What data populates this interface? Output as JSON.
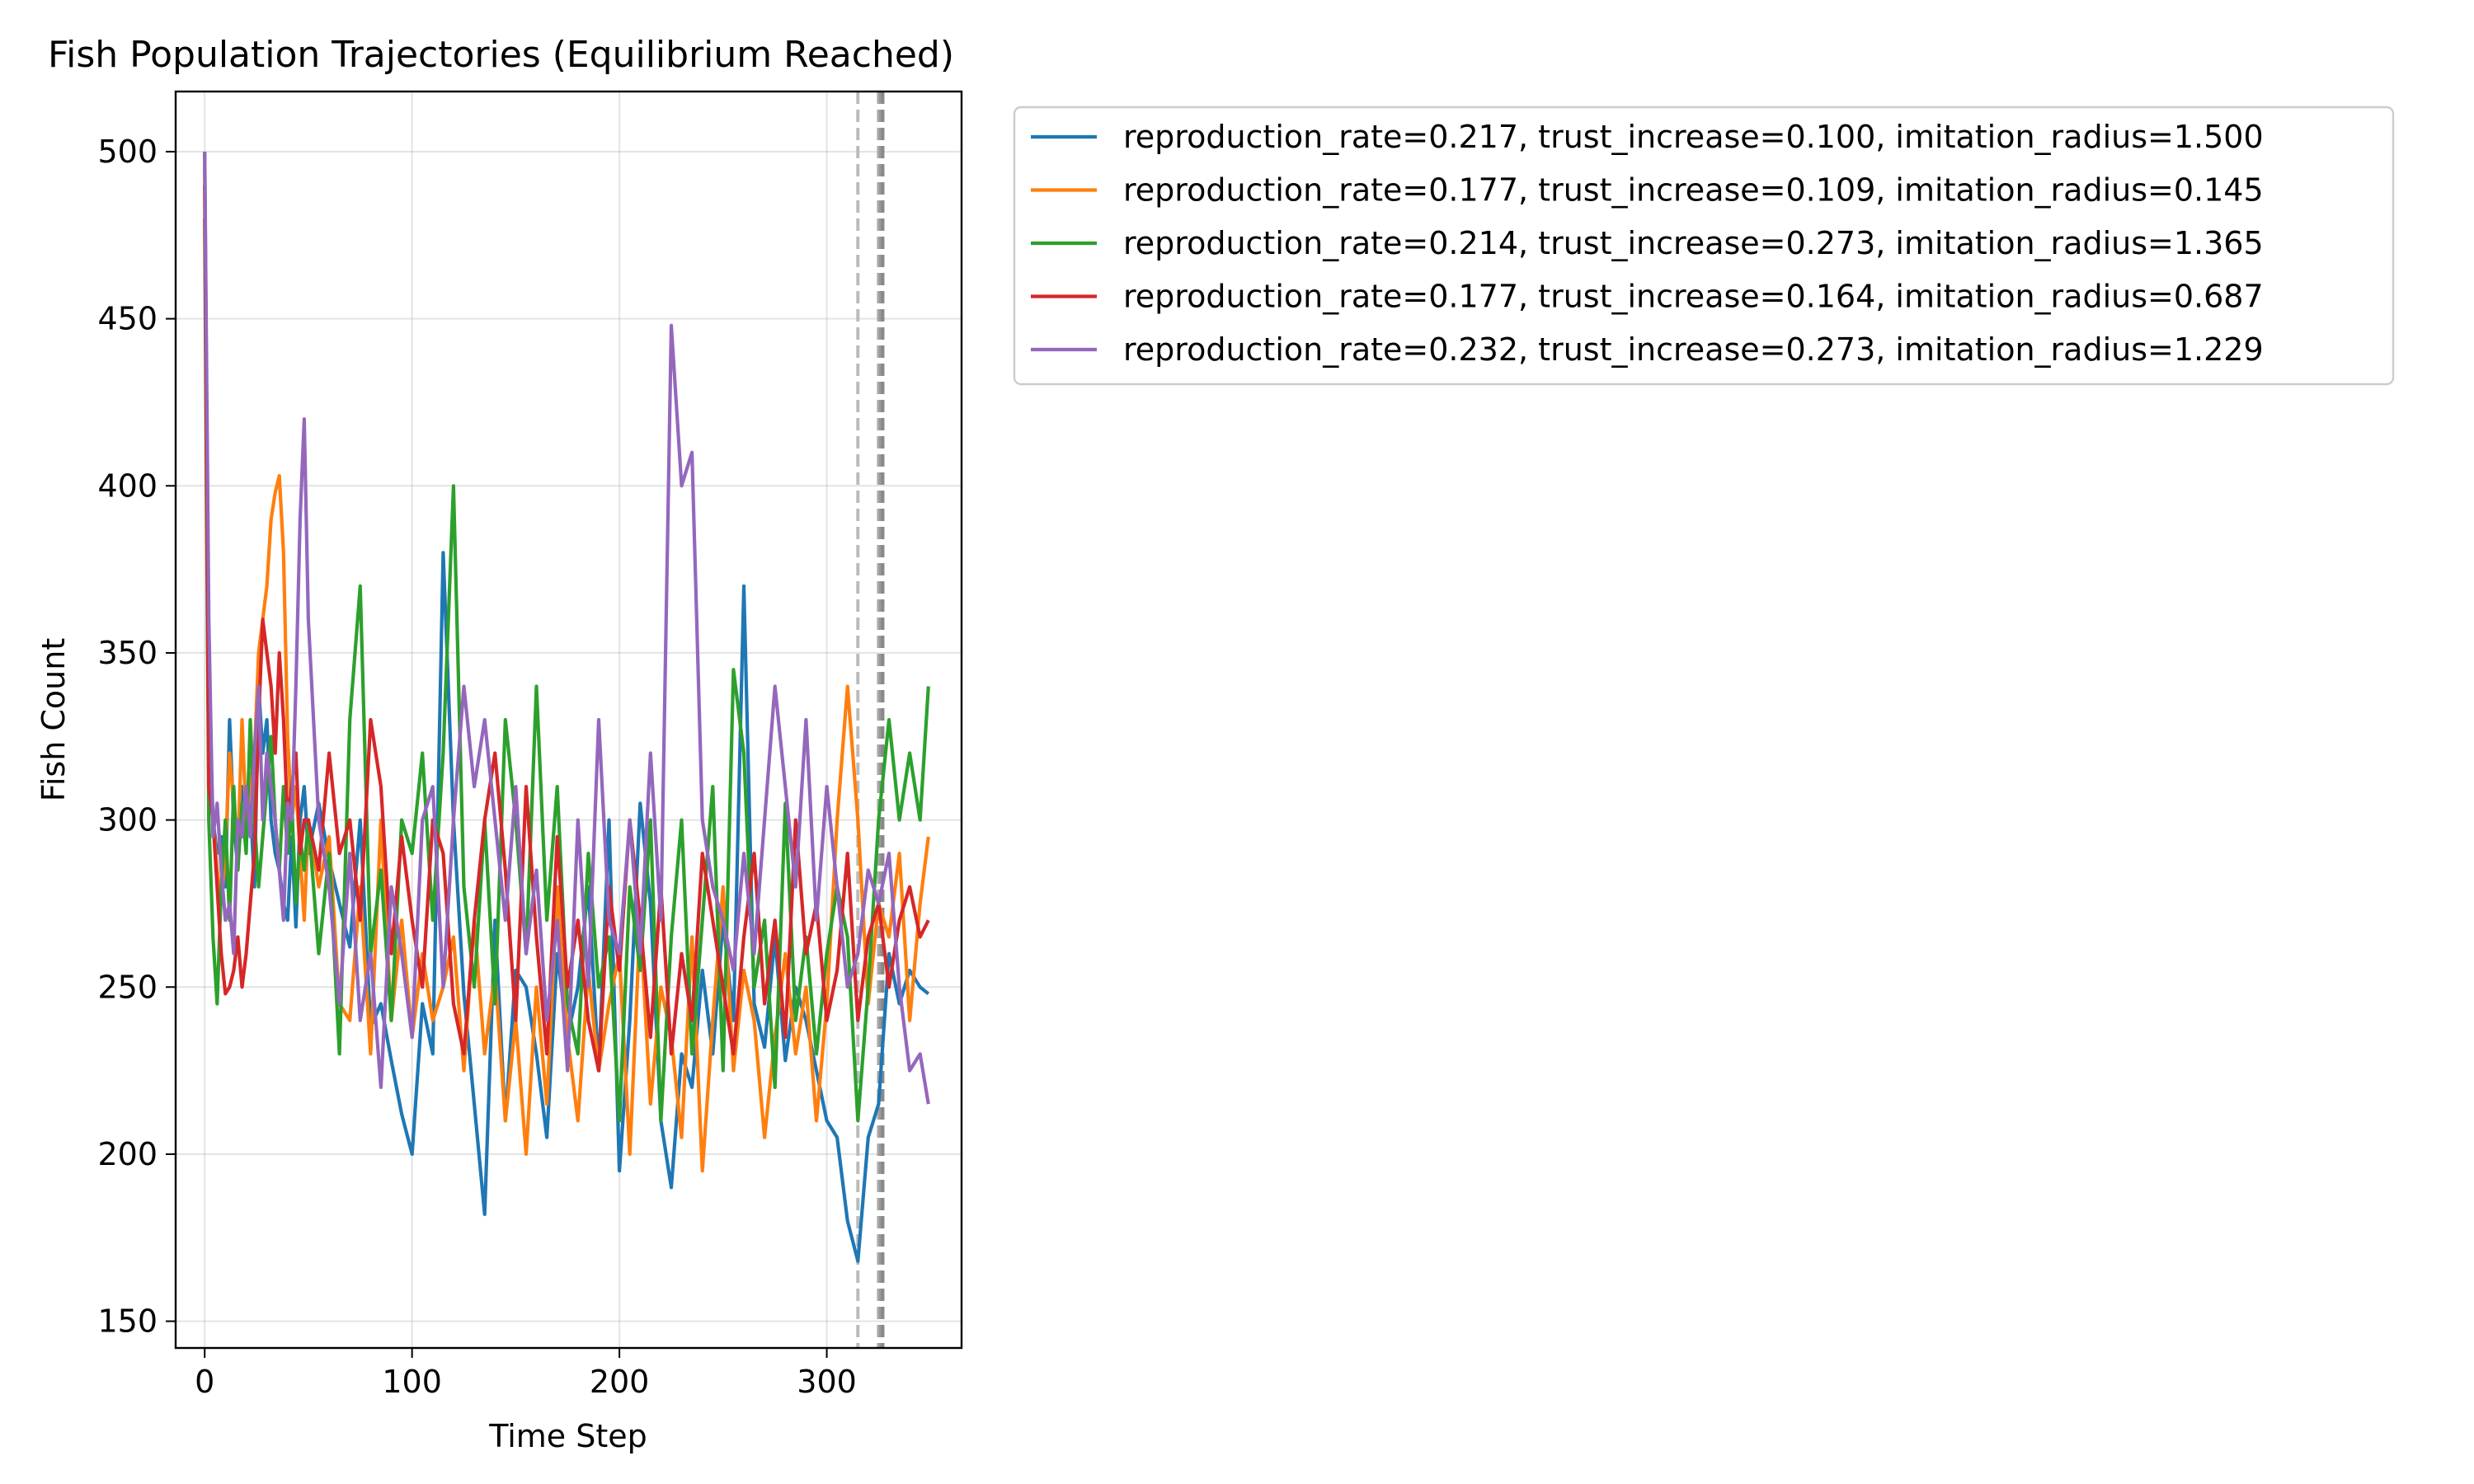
{
  "chart_data": {
    "type": "line",
    "title": "Fish Population Trajectories (Equilibrium Reached)",
    "xlabel": "Time Step",
    "ylabel": "Fish Count",
    "xlim": [
      -14,
      365
    ],
    "ylim": [
      142,
      518
    ],
    "xticks": [
      0,
      100,
      200,
      300
    ],
    "yticks": [
      150,
      200,
      250,
      300,
      350,
      400,
      450,
      500
    ],
    "grid": true,
    "legend_position": "outside right, top",
    "vlines": [
      {
        "x": 315,
        "color": "#bbbbbb",
        "style": "dashed"
      },
      {
        "x": 325,
        "color": "#aaaaaa",
        "style": "dashed"
      },
      {
        "x": 326,
        "color": "#999999",
        "style": "dashed"
      },
      {
        "x": 327,
        "color": "#888888",
        "style": "dashed"
      }
    ],
    "series": [
      {
        "name": "reproduction_rate=0.217, trust_increase=0.100, imitation_radius=1.500",
        "color": "#1f77b4",
        "x": [
          0,
          2,
          4,
          6,
          8,
          10,
          12,
          14,
          16,
          18,
          20,
          22,
          24,
          26,
          28,
          30,
          32,
          34,
          36,
          38,
          40,
          42,
          44,
          46,
          48,
          50,
          55,
          60,
          65,
          70,
          75,
          80,
          85,
          90,
          95,
          100,
          105,
          110,
          115,
          120,
          125,
          130,
          135,
          140,
          145,
          150,
          155,
          160,
          165,
          170,
          175,
          180,
          185,
          190,
          195,
          200,
          205,
          210,
          215,
          220,
          225,
          230,
          235,
          240,
          245,
          250,
          255,
          260,
          265,
          270,
          275,
          280,
          285,
          290,
          295,
          300,
          305,
          310,
          315,
          320,
          325,
          330,
          335,
          340,
          345,
          349
        ],
        "y": [
          500,
          340,
          300,
          290,
          295,
          280,
          330,
          300,
          285,
          310,
          295,
          305,
          280,
          340,
          320,
          330,
          300,
          290,
          285,
          275,
          270,
          295,
          268,
          300,
          310,
          290,
          305,
          288,
          275,
          262,
          300,
          238,
          245,
          228,
          212,
          200,
          245,
          230,
          380,
          300,
          248,
          215,
          182,
          270,
          210,
          255,
          250,
          230,
          205,
          260,
          235,
          250,
          280,
          225,
          300,
          195,
          240,
          305,
          275,
          210,
          190,
          230,
          220,
          255,
          230,
          270,
          240,
          370,
          245,
          232,
          265,
          228,
          250,
          240,
          225,
          210,
          205,
          180,
          168,
          205,
          215,
          260,
          245,
          255,
          250,
          248
        ]
      },
      {
        "name": "reproduction_rate=0.177, trust_increase=0.109, imitation_radius=0.145",
        "color": "#ff7f0e",
        "x": [
          0,
          2,
          4,
          6,
          8,
          10,
          12,
          14,
          16,
          18,
          20,
          22,
          24,
          26,
          28,
          30,
          32,
          34,
          36,
          38,
          40,
          42,
          44,
          46,
          48,
          50,
          55,
          60,
          65,
          70,
          75,
          80,
          85,
          90,
          95,
          100,
          105,
          110,
          115,
          120,
          125,
          130,
          135,
          140,
          145,
          150,
          155,
          160,
          165,
          170,
          175,
          180,
          185,
          190,
          195,
          200,
          205,
          210,
          215,
          220,
          225,
          230,
          235,
          240,
          245,
          250,
          255,
          260,
          265,
          270,
          275,
          280,
          285,
          290,
          295,
          300,
          305,
          310,
          315,
          320,
          325,
          330,
          335,
          340,
          345,
          349
        ],
        "y": [
          495,
          320,
          300,
          285,
          275,
          290,
          320,
          305,
          290,
          330,
          300,
          310,
          320,
          350,
          360,
          370,
          390,
          398,
          403,
          380,
          325,
          300,
          310,
          290,
          270,
          300,
          280,
          295,
          245,
          240,
          280,
          230,
          300,
          240,
          270,
          235,
          260,
          240,
          250,
          265,
          225,
          270,
          230,
          255,
          210,
          240,
          200,
          250,
          215,
          280,
          235,
          210,
          255,
          225,
          245,
          260,
          200,
          270,
          215,
          250,
          235,
          205,
          265,
          195,
          240,
          280,
          225,
          255,
          240,
          205,
          235,
          260,
          230,
          250,
          210,
          245,
          300,
          340,
          300,
          245,
          275,
          265,
          290,
          240,
          275,
          295
        ]
      },
      {
        "name": "reproduction_rate=0.214, trust_increase=0.273, imitation_radius=1.365",
        "color": "#2ca02c",
        "x": [
          0,
          2,
          4,
          6,
          8,
          10,
          12,
          14,
          16,
          18,
          20,
          22,
          24,
          26,
          28,
          30,
          32,
          34,
          36,
          38,
          40,
          42,
          44,
          46,
          48,
          50,
          55,
          60,
          65,
          70,
          75,
          80,
          85,
          90,
          95,
          100,
          105,
          110,
          115,
          120,
          125,
          130,
          135,
          140,
          145,
          150,
          155,
          160,
          165,
          170,
          175,
          180,
          185,
          190,
          195,
          200,
          205,
          210,
          215,
          220,
          225,
          230,
          235,
          240,
          245,
          250,
          255,
          260,
          265,
          270,
          275,
          280,
          285,
          290,
          295,
          300,
          305,
          310,
          315,
          320,
          325,
          330,
          335,
          340,
          345,
          349
        ],
        "y": [
          480,
          300,
          265,
          245,
          280,
          300,
          270,
          310,
          285,
          305,
          290,
          330,
          300,
          280,
          295,
          310,
          325,
          300,
          285,
          310,
          290,
          305,
          275,
          295,
          285,
          300,
          260,
          290,
          230,
          330,
          370,
          260,
          285,
          240,
          300,
          290,
          320,
          270,
          320,
          400,
          280,
          250,
          300,
          245,
          330,
          300,
          260,
          340,
          270,
          310,
          245,
          230,
          290,
          250,
          265,
          210,
          280,
          255,
          300,
          210,
          265,
          300,
          230,
          270,
          310,
          225,
          345,
          320,
          250,
          270,
          220,
          305,
          240,
          265,
          230,
          260,
          280,
          265,
          210,
          250,
          300,
          330,
          300,
          320,
          300,
          340
        ]
      },
      {
        "name": "reproduction_rate=0.177, trust_increase=0.164, imitation_radius=0.687",
        "color": "#d62728",
        "x": [
          0,
          2,
          4,
          6,
          8,
          10,
          12,
          14,
          16,
          18,
          20,
          22,
          24,
          26,
          28,
          30,
          32,
          34,
          36,
          38,
          40,
          42,
          44,
          46,
          48,
          50,
          55,
          60,
          65,
          70,
          75,
          80,
          85,
          90,
          95,
          100,
          105,
          110,
          115,
          120,
          125,
          130,
          135,
          140,
          145,
          150,
          155,
          160,
          165,
          170,
          175,
          180,
          185,
          190,
          195,
          200,
          205,
          210,
          215,
          220,
          225,
          230,
          235,
          240,
          245,
          250,
          255,
          260,
          265,
          270,
          275,
          280,
          285,
          290,
          295,
          300,
          305,
          310,
          315,
          320,
          325,
          330,
          335,
          340,
          345,
          349
        ],
        "y": [
          490,
          310,
          300,
          280,
          260,
          248,
          250,
          255,
          265,
          250,
          260,
          275,
          290,
          330,
          360,
          350,
          340,
          320,
          350,
          330,
          300,
          310,
          320,
          290,
          300,
          300,
          285,
          320,
          290,
          300,
          270,
          330,
          310,
          260,
          295,
          270,
          250,
          300,
          290,
          245,
          230,
          270,
          300,
          320,
          285,
          240,
          310,
          265,
          230,
          295,
          250,
          270,
          240,
          225,
          280,
          255,
          300,
          270,
          235,
          280,
          230,
          260,
          240,
          290,
          270,
          250,
          230,
          265,
          290,
          245,
          270,
          235,
          300,
          260,
          275,
          240,
          255,
          290,
          240,
          265,
          275,
          250,
          270,
          280,
          265,
          270
        ]
      },
      {
        "name": "reproduction_rate=0.232, trust_increase=0.273, imitation_radius=1.229",
        "color": "#9467bd",
        "x": [
          0,
          2,
          4,
          6,
          8,
          10,
          12,
          14,
          16,
          18,
          20,
          22,
          24,
          26,
          28,
          30,
          32,
          34,
          36,
          38,
          40,
          42,
          44,
          46,
          48,
          50,
          55,
          60,
          65,
          70,
          75,
          80,
          85,
          90,
          95,
          100,
          105,
          110,
          115,
          120,
          125,
          130,
          135,
          140,
          145,
          150,
          155,
          160,
          165,
          170,
          175,
          180,
          185,
          190,
          195,
          200,
          205,
          210,
          215,
          220,
          225,
          230,
          235,
          240,
          245,
          250,
          255,
          260,
          265,
          270,
          275,
          280,
          285,
          290,
          295,
          300,
          305,
          310,
          315,
          320,
          325,
          330,
          335,
          340,
          345,
          349
        ],
        "y": [
          500,
          360,
          295,
          305,
          285,
          270,
          275,
          260,
          300,
          295,
          310,
          295,
          320,
          340,
          300,
          320,
          310,
          300,
          285,
          270,
          305,
          300,
          340,
          390,
          420,
          360,
          300,
          280,
          245,
          290,
          240,
          260,
          220,
          280,
          260,
          235,
          300,
          310,
          250,
          300,
          340,
          310,
          330,
          300,
          270,
          310,
          260,
          285,
          240,
          270,
          225,
          300,
          250,
          330,
          270,
          260,
          300,
          260,
          320,
          270,
          448,
          400,
          410,
          300,
          280,
          270,
          255,
          290,
          260,
          300,
          340,
          310,
          280,
          330,
          270,
          310,
          280,
          250,
          260,
          285,
          275,
          290,
          250,
          225,
          230,
          215
        ]
      }
    ]
  }
}
